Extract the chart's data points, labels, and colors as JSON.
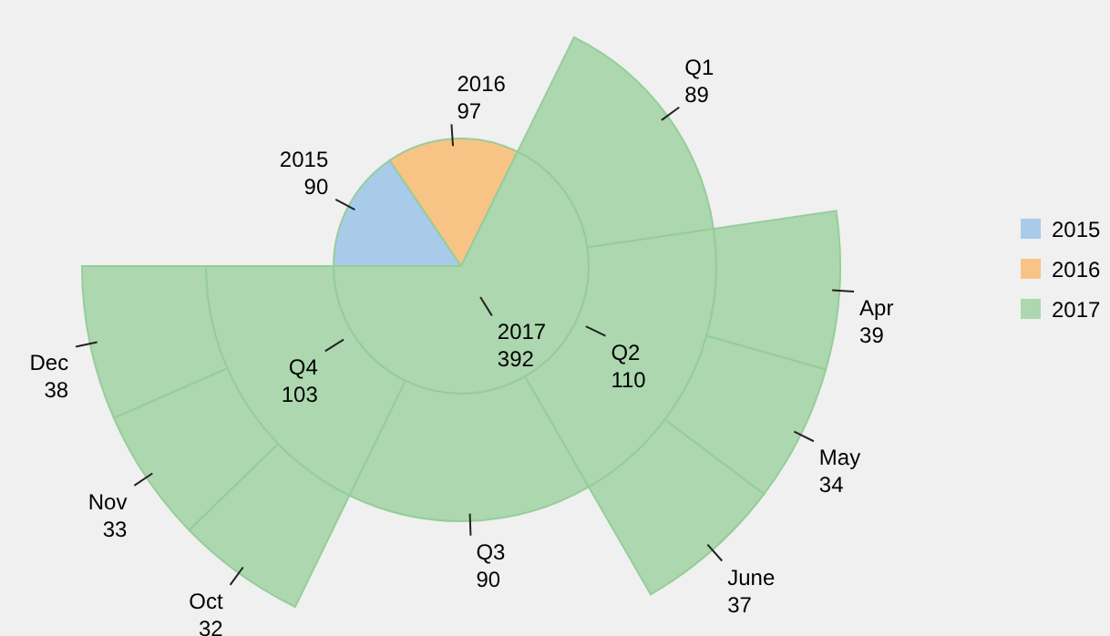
{
  "chart_data": {
    "type": "other",
    "categories": [
      "2015",
      "2016",
      "2017",
      "Q1",
      "Q2",
      "Q3",
      "Q4",
      "Apr",
      "May",
      "June",
      "Oct",
      "Nov",
      "Dec"
    ],
    "values": [
      90,
      97,
      392,
      89,
      110,
      90,
      103,
      39,
      34,
      37,
      32,
      33,
      38
    ],
    "colors": [
      "#a9cbea",
      "#f7c486",
      "#add7af",
      "#add7af",
      "#add7af",
      "#add7af",
      "#add7af",
      "#add7af",
      "#add7af",
      "#add7af",
      "#add7af",
      "#add7af",
      "#add7af"
    ],
    "data_labels": true
  }
}
